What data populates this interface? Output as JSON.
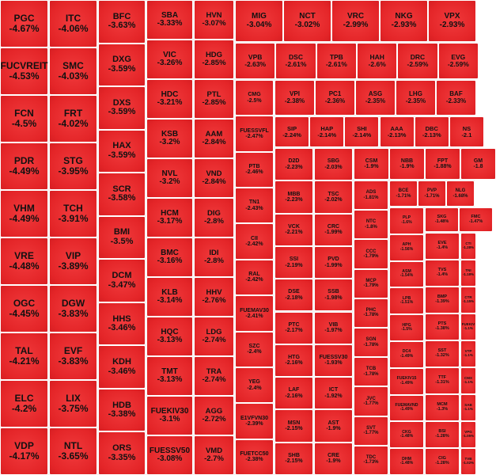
{
  "groups": [
    {
      "tiles": [
        {
          "ticker": "PGC",
          "change": "-4.67%"
        },
        {
          "ticker": "FUCVREIT",
          "change": "-4.53%"
        },
        {
          "ticker": "FCN",
          "change": "-4.5%"
        },
        {
          "ticker": "PDR",
          "change": "-4.49%"
        },
        {
          "ticker": "VHM",
          "change": "-4.49%"
        },
        {
          "ticker": "VRE",
          "change": "-4.48%"
        },
        {
          "ticker": "OGC",
          "change": "-4.45%"
        },
        {
          "ticker": "TAL",
          "change": "-4.21%"
        },
        {
          "ticker": "ELC",
          "change": "-4.2%"
        },
        {
          "ticker": "VDP",
          "change": "-4.17%"
        }
      ]
    },
    {
      "tiles": [
        {
          "ticker": "ITC",
          "change": "-4.06%"
        },
        {
          "ticker": "SMC",
          "change": "-4.03%"
        },
        {
          "ticker": "FRT",
          "change": "-4.02%"
        },
        {
          "ticker": "STG",
          "change": "-3.95%"
        },
        {
          "ticker": "TCH",
          "change": "-3.91%"
        },
        {
          "ticker": "VIP",
          "change": "-3.89%"
        },
        {
          "ticker": "DGW",
          "change": "-3.83%"
        },
        {
          "ticker": "EVF",
          "change": "-3.83%"
        },
        {
          "ticker": "LIX",
          "change": "-3.75%"
        },
        {
          "ticker": "NTL",
          "change": "-3.65%"
        }
      ]
    },
    {
      "tiles": [
        {
          "ticker": "BFC",
          "change": "-3.63%"
        },
        {
          "ticker": "DXG",
          "change": "-3.59%"
        },
        {
          "ticker": "DXS",
          "change": "-3.59%"
        },
        {
          "ticker": "HAX",
          "change": "-3.59%"
        },
        {
          "ticker": "SCR",
          "change": "-3.58%"
        },
        {
          "ticker": "BMI",
          "change": "-3.5%"
        },
        {
          "ticker": "DCM",
          "change": "-3.47%"
        },
        {
          "ticker": "HHS",
          "change": "-3.46%"
        },
        {
          "ticker": "KDH",
          "change": "-3.46%"
        },
        {
          "ticker": "HDB",
          "change": "-3.38%"
        },
        {
          "ticker": "ORS",
          "change": "-3.35%"
        }
      ]
    },
    {
      "tiles": [
        {
          "ticker": "SBA",
          "change": "-3.33%"
        },
        {
          "ticker": "VIC",
          "change": "-3.26%"
        },
        {
          "ticker": "HDC",
          "change": "-3.21%"
        },
        {
          "ticker": "KSB",
          "change": "-3.2%"
        },
        {
          "ticker": "NVL",
          "change": "-3.2%"
        },
        {
          "ticker": "HCM",
          "change": "-3.17%"
        },
        {
          "ticker": "BMC",
          "change": "-3.16%"
        },
        {
          "ticker": "KLB",
          "change": "-3.14%"
        },
        {
          "ticker": "HQC",
          "change": "-3.13%"
        },
        {
          "ticker": "TMT",
          "change": "-3.13%"
        },
        {
          "ticker": "FUEKIV30",
          "change": "-3.1%"
        },
        {
          "ticker": "FUESSV50",
          "change": "-3.08%"
        }
      ]
    },
    {
      "tiles": [
        {
          "ticker": "HVN",
          "change": "-3.07%"
        },
        {
          "ticker": "HDG",
          "change": "-2.85%"
        },
        {
          "ticker": "PTL",
          "change": "-2.85%"
        },
        {
          "ticker": "AAM",
          "change": "-2.84%"
        },
        {
          "ticker": "VND",
          "change": "-2.84%"
        },
        {
          "ticker": "DIG",
          "change": "-2.8%"
        },
        {
          "ticker": "IDI",
          "change": "-2.8%"
        },
        {
          "ticker": "HHV",
          "change": "-2.76%"
        },
        {
          "ticker": "LDG",
          "change": "-2.74%"
        },
        {
          "ticker": "TRA",
          "change": "-2.74%"
        },
        {
          "ticker": "AGG",
          "change": "-2.72%"
        },
        {
          "ticker": "VMD",
          "change": "-2.7%"
        }
      ]
    },
    {
      "tiles": [
        {
          "ticker": "MIG",
          "change": "-3.04%"
        },
        {
          "ticker": "NCT",
          "change": "-3.02%"
        },
        {
          "ticker": "VRC",
          "change": "-2.99%"
        },
        {
          "ticker": "NKG",
          "change": "-2.93%"
        },
        {
          "ticker": "VPX",
          "change": "-2.93%"
        }
      ]
    },
    {
      "tiles": [
        {
          "ticker": "VPB",
          "change": "-2.63%"
        },
        {
          "ticker": "DSC",
          "change": "-2.61%"
        },
        {
          "ticker": "TPB",
          "change": "-2.61%"
        },
        {
          "ticker": "HAH",
          "change": "-2.6%"
        },
        {
          "ticker": "DRC",
          "change": "-2.59%"
        },
        {
          "ticker": "EVG",
          "change": "-2.59%"
        }
      ]
    },
    {
      "tiles": [
        {
          "ticker": "CMG",
          "change": "-2.5%"
        },
        {
          "ticker": "FUESSVFL",
          "change": "-2.47%"
        },
        {
          "ticker": "PTB",
          "change": "-2.46%"
        },
        {
          "ticker": "TN1",
          "change": "-2.43%"
        },
        {
          "ticker": "CII",
          "change": "-2.42%"
        },
        {
          "ticker": "RAL",
          "change": "-2.42%"
        },
        {
          "ticker": "FUEMAV30",
          "change": "-2.41%"
        },
        {
          "ticker": "SZC",
          "change": "-2.4%"
        },
        {
          "ticker": "YEG",
          "change": "-2.4%"
        },
        {
          "ticker": "E1VFVN30",
          "change": "-2.39%"
        },
        {
          "ticker": "FUETCC50",
          "change": "-2.38%"
        }
      ]
    },
    {
      "tiles": [
        {
          "ticker": "VPI",
          "change": "-2.38%"
        },
        {
          "ticker": "PC1",
          "change": "-2.36%"
        },
        {
          "ticker": "ASG",
          "change": "-2.35%"
        },
        {
          "ticker": "LHG",
          "change": "-2.35%"
        },
        {
          "ticker": "BAF",
          "change": "-2.33%"
        }
      ]
    },
    {
      "tiles": [
        {
          "ticker": "SIP",
          "change": "-2.24%"
        },
        {
          "ticker": "HAP",
          "change": "-2.14%"
        },
        {
          "ticker": "SHI",
          "change": "-2.14%"
        },
        {
          "ticker": "AAA",
          "change": "-2.13%"
        },
        {
          "ticker": "DBC",
          "change": "-2.13%"
        },
        {
          "ticker": "NS",
          "change": "-2.1"
        }
      ]
    },
    {
      "tiles": [
        {
          "ticker": "D2D",
          "change": "-2.23%"
        },
        {
          "ticker": "MBB",
          "change": "-2.23%"
        },
        {
          "ticker": "VCK",
          "change": "-2.21%"
        },
        {
          "ticker": "SSI",
          "change": "-2.19%"
        },
        {
          "ticker": "DSE",
          "change": "-2.18%"
        },
        {
          "ticker": "PTC",
          "change": "-2.17%"
        },
        {
          "ticker": "HTG",
          "change": "-2.16%"
        },
        {
          "ticker": "LAF",
          "change": "-2.16%"
        },
        {
          "ticker": "MSN",
          "change": "-2.15%"
        },
        {
          "ticker": "SHB",
          "change": "-2.15%"
        }
      ]
    },
    {
      "tiles": [
        {
          "ticker": "SBG",
          "change": "-2.03%"
        },
        {
          "ticker": "TSC",
          "change": "-2.02%"
        },
        {
          "ticker": "CRC",
          "change": "-1.99%"
        },
        {
          "ticker": "PVD",
          "change": "-1.99%"
        },
        {
          "ticker": "SSB",
          "change": "-1.98%"
        },
        {
          "ticker": "VIB",
          "change": "-1.97%"
        },
        {
          "ticker": "FUESSV30",
          "change": "-1.93%"
        },
        {
          "ticker": "ICT",
          "change": "-1.92%"
        },
        {
          "ticker": "AST",
          "change": "-1.9%"
        },
        {
          "ticker": "CRE",
          "change": "-1.9%"
        }
      ]
    },
    {
      "tiles": [
        {
          "ticker": "CSM",
          "change": "-1.9%"
        },
        {
          "ticker": "NBB",
          "change": "-1.9%"
        },
        {
          "ticker": "FPT",
          "change": "-1.88%"
        },
        {
          "ticker": "GM",
          "change": "-1.8"
        }
      ]
    },
    {
      "tiles": [
        {
          "ticker": "ADS",
          "change": "-1.81%"
        },
        {
          "ticker": "NTC",
          "change": "-1.8%"
        },
        {
          "ticker": "CCC",
          "change": "-1.79%"
        },
        {
          "ticker": "MCP",
          "change": "-1.79%"
        },
        {
          "ticker": "PHC",
          "change": "-1.78%"
        },
        {
          "ticker": "SGN",
          "change": "-1.78%"
        },
        {
          "ticker": "TCB",
          "change": "-1.78%"
        },
        {
          "ticker": "JVC",
          "change": "-1.77%"
        },
        {
          "ticker": "SVT",
          "change": "-1.77%"
        },
        {
          "ticker": "TDC",
          "change": "-1.73%"
        }
      ]
    },
    {
      "tiles": [
        {
          "ticker": "BCE",
          "change": "-1.71%"
        },
        {
          "ticker": "PVP",
          "change": "-1.71%"
        },
        {
          "ticker": "NLG",
          "change": "-1.68%"
        }
      ]
    },
    {
      "tiles": [
        {
          "ticker": "PLP",
          "change": "-1.6%"
        },
        {
          "ticker": "APH",
          "change": "-1.56%"
        },
        {
          "ticker": "ASM",
          "change": "-1.54%"
        },
        {
          "ticker": "LPB",
          "change": "-1.51%"
        },
        {
          "ticker": "HPG",
          "change": "-1.5%"
        },
        {
          "ticker": "DC4",
          "change": "-1.49%"
        },
        {
          "ticker": "FUEKIV15",
          "change": "-1.49%"
        },
        {
          "ticker": "FUEMAVND",
          "change": "-1.49%"
        },
        {
          "ticker": "CKG",
          "change": "-1.48%"
        },
        {
          "ticker": "DHM",
          "change": "-1.48%"
        }
      ]
    },
    {
      "tiles": [
        {
          "ticker": "SKG",
          "change": "-1.48%"
        },
        {
          "ticker": "FMC",
          "change": "-1.47%"
        }
      ]
    },
    {
      "tiles": [
        {
          "ticker": "EVE",
          "change": "-1.4%"
        },
        {
          "ticker": "TVS",
          "change": "-1.4%"
        },
        {
          "ticker": "BMP",
          "change": "-1.39%"
        },
        {
          "ticker": "PTS",
          "change": "-1.38%"
        },
        {
          "ticker": "SST",
          "change": "-1.32%"
        },
        {
          "ticker": "TTF",
          "change": "-1.31%"
        },
        {
          "ticker": "MCM",
          "change": "-1.3%"
        },
        {
          "ticker": "BSI",
          "change": "-1.28%"
        },
        {
          "ticker": "CIG",
          "change": "-1.28%"
        }
      ]
    },
    {
      "tiles": [
        {
          "ticker": "CTI",
          "change": "-1.28%"
        },
        {
          "ticker": "TNI",
          "change": "-1.18%"
        },
        {
          "ticker": "CTR",
          "change": "-1.15%"
        },
        {
          "ticker": "FUEKIV",
          "change": "-1.1%"
        },
        {
          "ticker": "VTP",
          "change": "-1.1%"
        },
        {
          "ticker": "CMX",
          "change": "-1.1%"
        },
        {
          "ticker": "SAB",
          "change": "-1.1%"
        },
        {
          "ticker": "VPG",
          "change": "-1.05%"
        },
        {
          "ticker": "TVB",
          "change": "-1.02%"
        }
      ]
    }
  ]
}
